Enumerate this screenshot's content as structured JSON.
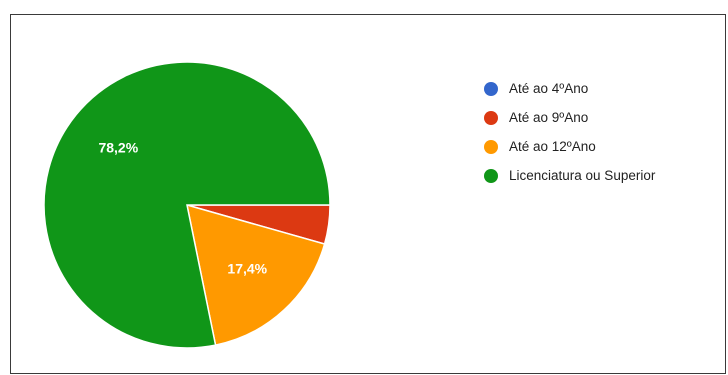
{
  "chart_data": {
    "type": "pie",
    "title": "",
    "start_angle_deg": 90,
    "direction": "clockwise",
    "legend_position": "right",
    "slices": [
      {
        "label": "Até ao 4ºAno",
        "value": 0.0,
        "display": "",
        "color": "#3366cc"
      },
      {
        "label": "Até ao 9ºAno",
        "value": 4.4,
        "display": "",
        "color": "#dc3912"
      },
      {
        "label": "Até ao 12ºAno",
        "value": 17.4,
        "display": "17,4%",
        "color": "#ff9900"
      },
      {
        "label": "Licenciatura ou Superior",
        "value": 78.2,
        "display": "78,2%",
        "color": "#109618"
      }
    ]
  }
}
